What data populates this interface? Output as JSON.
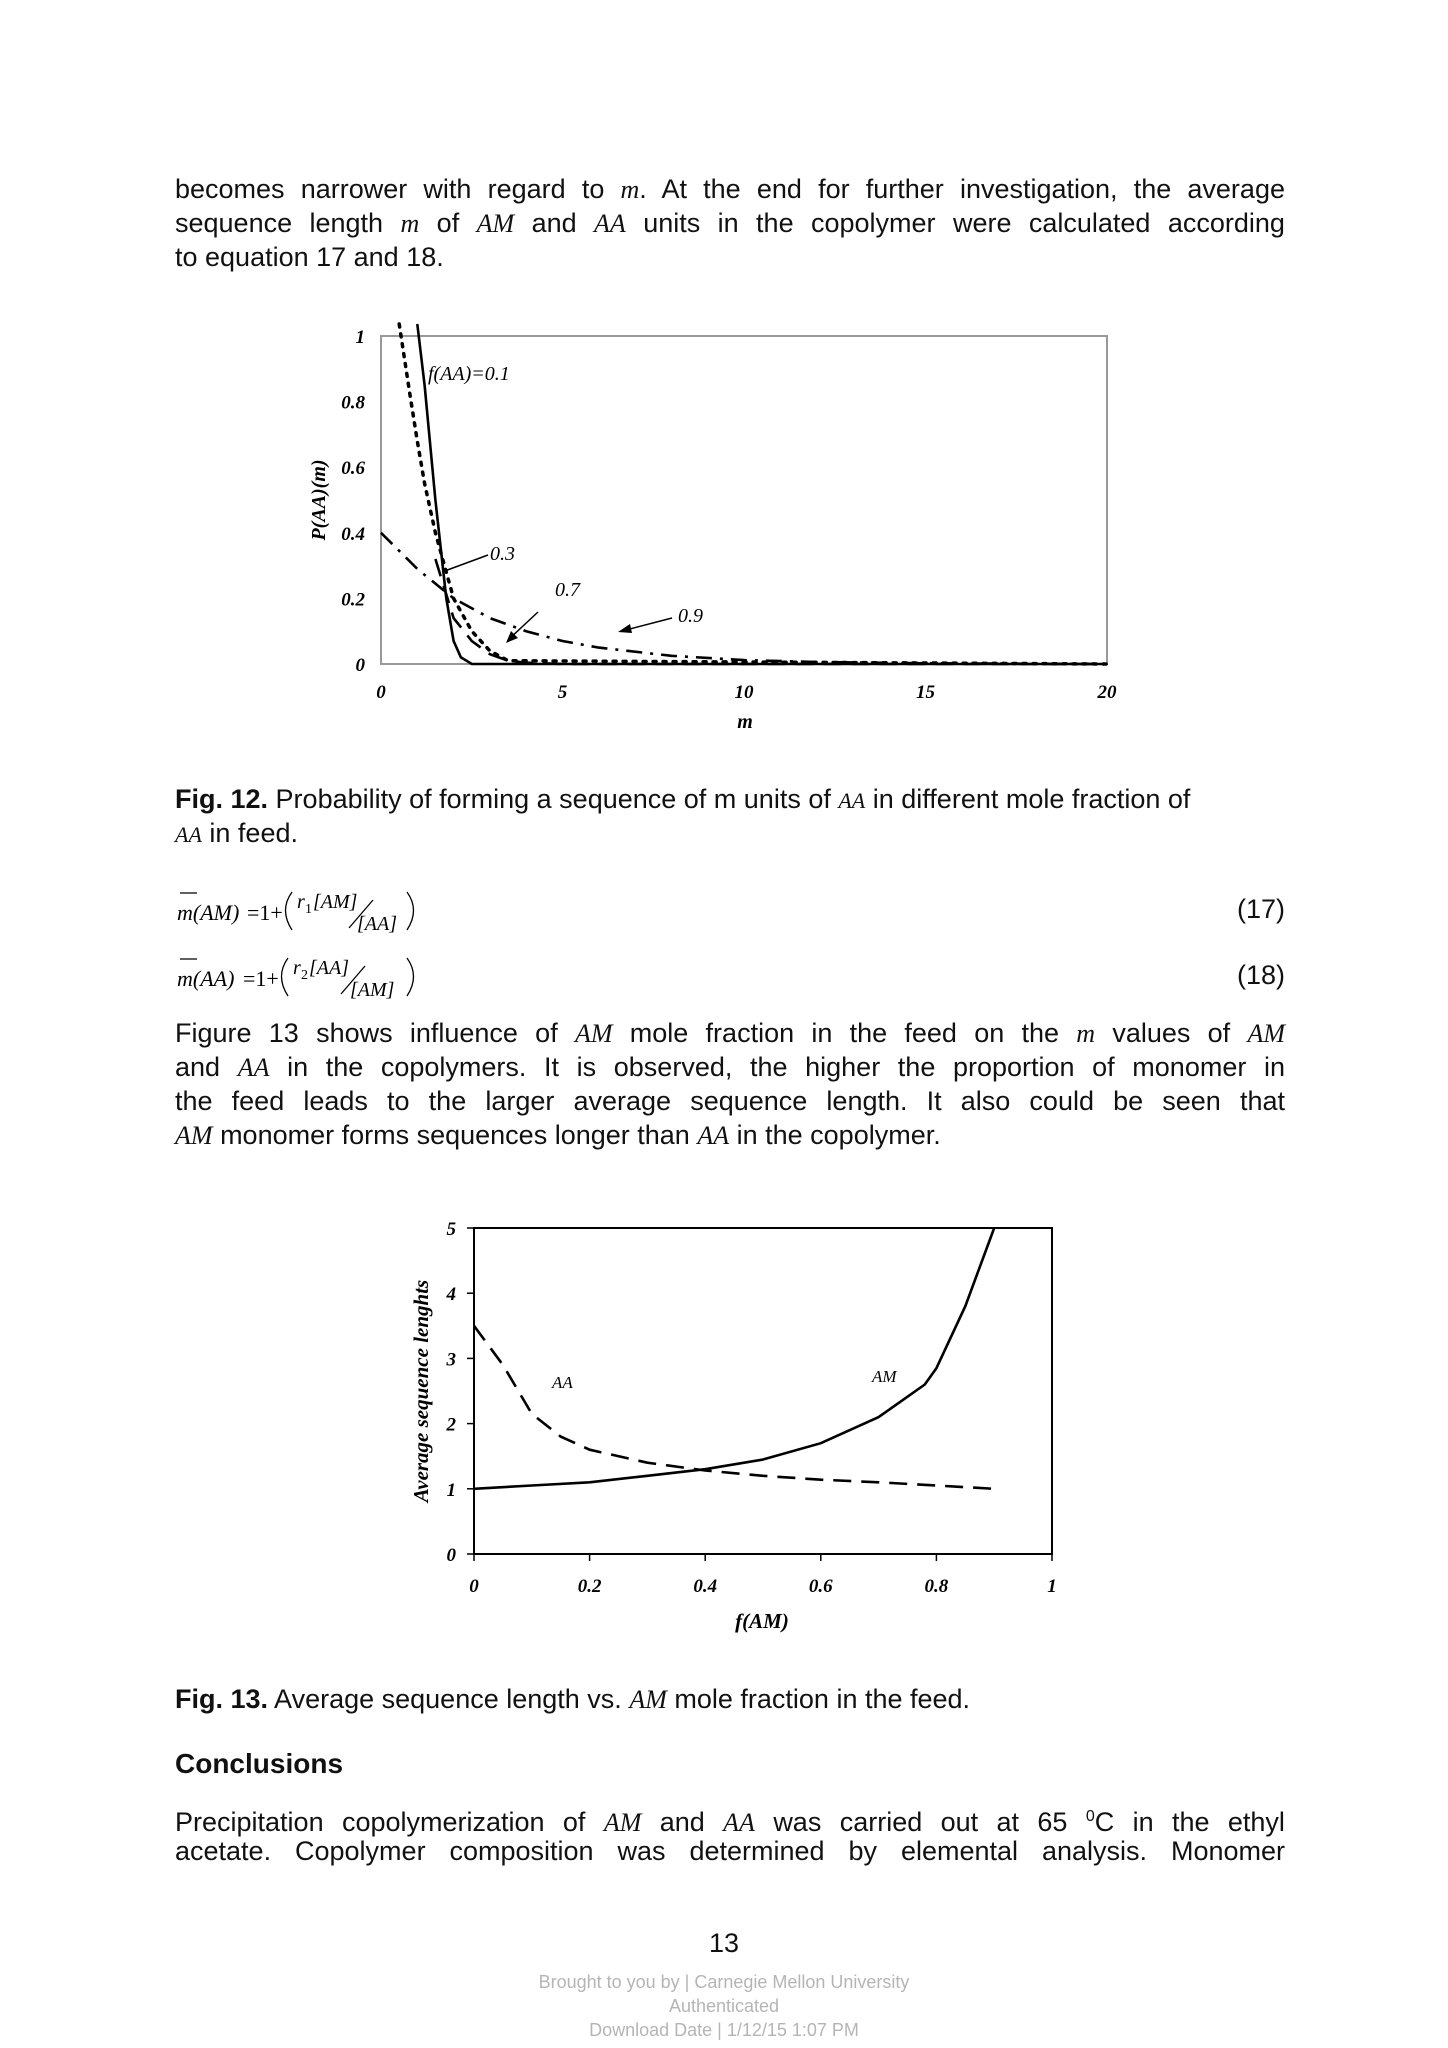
{
  "para1": {
    "l1a": "becomes narrower with regard to",
    "v_m": "m",
    "l1b": ". At the end for further investigation, the average",
    "l2a": "sequence length",
    "l2b": "of",
    "v_am": "AM",
    "l2c": "and",
    "v_aa": "AA",
    "l2d": "units in the copolymer were calculated according",
    "l3": "to equation 17 and 18."
  },
  "fig12": {
    "caption_label": "Fig. 12.",
    "caption_a": "Probability of forming a sequence of m units of",
    "caption_var": "AA",
    "caption_b": "in different mole fraction of",
    "caption_c": "in feed.",
    "chart_data": {
      "type": "line",
      "xlabel": "m",
      "ylabel": "P(AA)(m)",
      "xlim": [
        0,
        20
      ],
      "ylim": [
        0,
        1
      ],
      "xticks": [
        "0",
        "5",
        "10",
        "15",
        "20"
      ],
      "yticks": [
        "0",
        "0.2",
        "0.4",
        "0.6",
        "0.8",
        "1"
      ],
      "grid": false,
      "annotations": [
        "f(AA)=0.1",
        "0.3",
        "0.7",
        "0.9"
      ],
      "series": [
        {
          "name": "f(AA)=0.1",
          "style": "solid",
          "x": [
            1,
            1.2,
            1.5,
            1.8,
            2,
            2.2,
            2.5,
            3,
            20
          ],
          "y": [
            1.05,
            0.85,
            0.5,
            0.2,
            0.07,
            0.02,
            0.0,
            0.0,
            0.0
          ]
        },
        {
          "name": "0.3",
          "style": "dotted",
          "x": [
            0.5,
            0.8,
            1,
            1.2,
            1.5,
            1.8,
            2,
            2.5,
            3,
            3.5,
            20
          ],
          "y": [
            1.05,
            0.82,
            0.68,
            0.55,
            0.4,
            0.28,
            0.2,
            0.1,
            0.04,
            0.01,
            0.0
          ]
        },
        {
          "name": "0.7",
          "style": "dashed",
          "x": [
            1.5,
            2,
            2.5,
            3,
            3.5,
            4,
            5,
            20
          ],
          "y": [
            0.32,
            0.14,
            0.07,
            0.03,
            0.01,
            0.004,
            0.0,
            0.0
          ]
        },
        {
          "name": "0.9",
          "style": "dash-dot",
          "x": [
            0,
            1,
            2,
            3,
            4,
            5,
            6,
            8,
            10,
            12,
            15,
            20
          ],
          "y": [
            0.4,
            0.29,
            0.2,
            0.14,
            0.1,
            0.07,
            0.05,
            0.025,
            0.012,
            0.006,
            0.002,
            0.0
          ]
        }
      ]
    }
  },
  "eq17": {
    "lhs": "m(AM)",
    "rest": "=1+",
    "r": "r",
    "sub": "1",
    "num": "[AM]",
    "den": "[AA]",
    "num_label": "(17)"
  },
  "eq18": {
    "lhs": "m(AA)",
    "rest": "=1+",
    "r": "r",
    "sub": "2",
    "num": "[AA]",
    "den": "[AM]",
    "num_label": "(18)"
  },
  "para2": {
    "l1a": "Figure 13 shows influence of",
    "l1b": "mole fraction in the feed on the",
    "l1c": "values of",
    "l2a": "and",
    "l2b": "in the copolymers. It is observed, the higher the proportion of monomer in",
    "l3": "the feed leads to the larger average sequence length. It also could be seen that",
    "l4a": "monomer forms sequences longer than",
    "l4b": "in the copolymer."
  },
  "fig13": {
    "caption_label": "Fig. 13.",
    "caption_a": "Average sequence length vs.",
    "caption_var": "AM",
    "caption_b": "mole fraction in the feed.",
    "chart_data": {
      "type": "line",
      "xlabel": "f(AM)",
      "ylabel": "Average sequence lenghts",
      "xlim": [
        0,
        1
      ],
      "ylim": [
        0,
        5
      ],
      "xticks": [
        "0",
        "0.2",
        "0.4",
        "0.6",
        "0.8",
        "1"
      ],
      "yticks": [
        "0",
        "1",
        "2",
        "3",
        "4",
        "5"
      ],
      "grid": false,
      "series": [
        {
          "name": "AA",
          "style": "dashed",
          "x": [
            0,
            0.05,
            0.1,
            0.15,
            0.2,
            0.3,
            0.4,
            0.5,
            0.6,
            0.7,
            0.8,
            0.9
          ],
          "y": [
            3.5,
            2.9,
            2.15,
            1.8,
            1.6,
            1.4,
            1.28,
            1.2,
            1.14,
            1.1,
            1.05,
            1.0
          ]
        },
        {
          "name": "AM",
          "style": "solid",
          "x": [
            0,
            0.1,
            0.2,
            0.3,
            0.4,
            0.5,
            0.6,
            0.7,
            0.78,
            0.8,
            0.85,
            0.9
          ],
          "y": [
            1.0,
            1.05,
            1.1,
            1.2,
            1.3,
            1.45,
            1.7,
            2.1,
            2.6,
            2.85,
            3.8,
            5.0
          ]
        }
      ]
    }
  },
  "conclusions": {
    "heading": "Conclusions",
    "l1a": "Precipitation copolymerization of",
    "l1b": "and",
    "l1c": "was carried out at 65",
    "deg": "0",
    "l1d": "C in the ethyl",
    "l2": "acetate. Copolymer composition was determined by elemental analysis. Monomer"
  },
  "page_number": "13",
  "footer": {
    "line1": "Brought to you by | Carnegie Mellon University",
    "line2": "Authenticated",
    "line3": "Download Date | 1/12/15 1:07 PM"
  }
}
